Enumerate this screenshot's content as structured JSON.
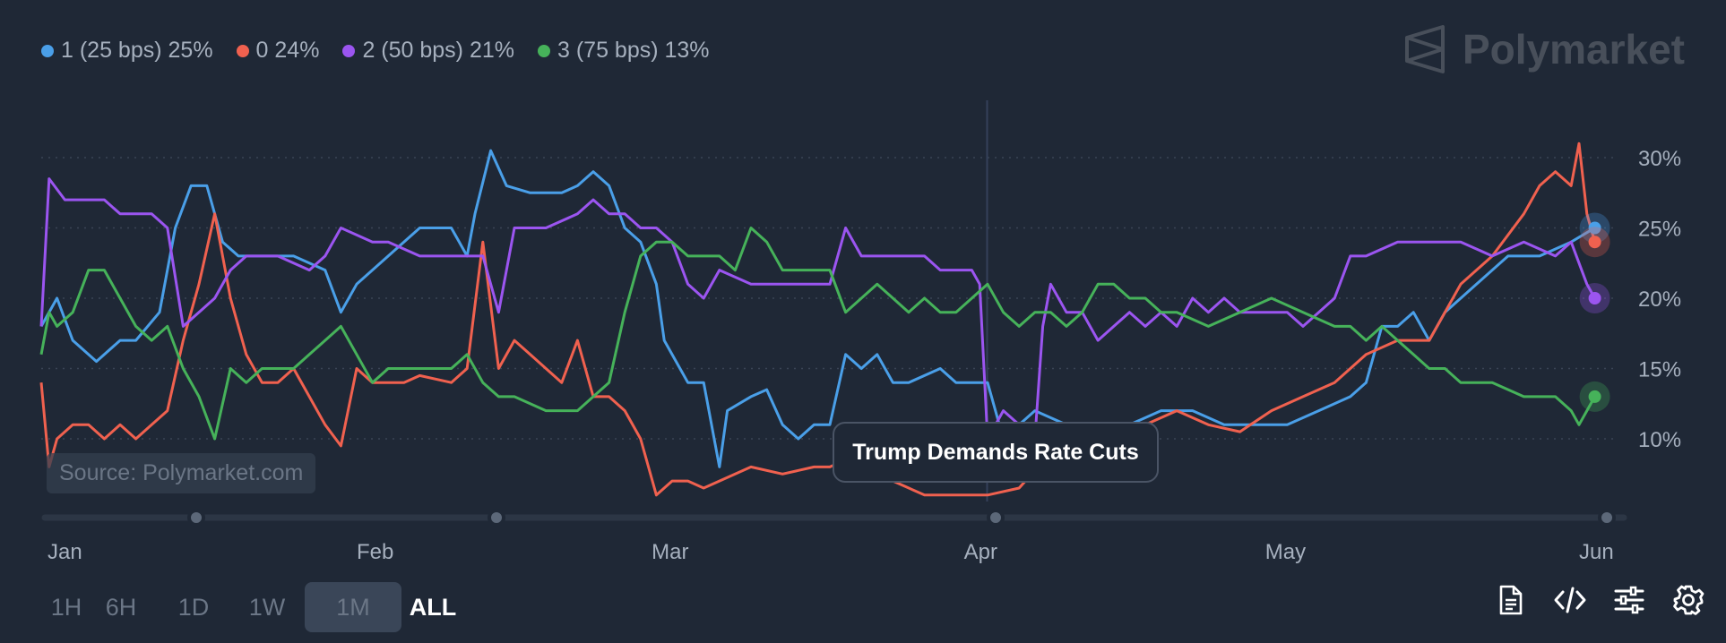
{
  "legend": [
    {
      "label": "1 (25 bps) 25%",
      "color": "#4a9fe8"
    },
    {
      "label": "0 24%",
      "color": "#f0614f"
    },
    {
      "label": "2 (50 bps) 21%",
      "color": "#9b55f0"
    },
    {
      "label": "3 (75 bps) 13%",
      "color": "#46b25a"
    }
  ],
  "brand": {
    "name": "Polymarket"
  },
  "source": "Source: Polymarket.com",
  "annotation": "Trump Demands Rate Cuts",
  "time_buttons": [
    "1H",
    "6H",
    "1D",
    "1W",
    "1M",
    "ALL"
  ],
  "time_selected": "ALL",
  "toolbar_icons": [
    "document-icon",
    "code-icon",
    "sliders-icon",
    "gear-icon"
  ],
  "chart_data": {
    "type": "line",
    "x_labels": [
      "Jan",
      "Feb",
      "Mar",
      "Apr",
      "May",
      "Jun"
    ],
    "y_ticks": [
      "30%",
      "25%",
      "20%",
      "15%",
      "10%"
    ],
    "y_tick_values": [
      30,
      25,
      20,
      15,
      10
    ],
    "ylim": [
      4,
      31
    ],
    "x_range": [
      0,
      100
    ],
    "x_label_positions": [
      0.4,
      20,
      38.7,
      58.5,
      77.6,
      97.5
    ],
    "grid": true,
    "event_x": 60,
    "series": [
      {
        "name": "1 (25 bps)",
        "color": "#4a9fe8",
        "points": [
          [
            0,
            18
          ],
          [
            1,
            20
          ],
          [
            2,
            17
          ],
          [
            3.5,
            15.5
          ],
          [
            5,
            17
          ],
          [
            6,
            17
          ],
          [
            7.5,
            19
          ],
          [
            8.5,
            25
          ],
          [
            9.5,
            28
          ],
          [
            10.5,
            28
          ],
          [
            11.5,
            24
          ],
          [
            12.5,
            23
          ],
          [
            14,
            23
          ],
          [
            16,
            23
          ],
          [
            18,
            22
          ],
          [
            19,
            19
          ],
          [
            20,
            21
          ],
          [
            22,
            23
          ],
          [
            24,
            25
          ],
          [
            26,
            25
          ],
          [
            27,
            23
          ],
          [
            27.5,
            26
          ],
          [
            28.5,
            30.5
          ],
          [
            29.5,
            28
          ],
          [
            31,
            27.5
          ],
          [
            33,
            27.5
          ],
          [
            34,
            28
          ],
          [
            35,
            29
          ],
          [
            36,
            28
          ],
          [
            37,
            25
          ],
          [
            38,
            24
          ],
          [
            39,
            21
          ],
          [
            39.5,
            17
          ],
          [
            40.5,
            15
          ],
          [
            41,
            14
          ],
          [
            42,
            14
          ],
          [
            43,
            8
          ],
          [
            43.5,
            12
          ],
          [
            45,
            13
          ],
          [
            46,
            13.5
          ],
          [
            47,
            11
          ],
          [
            48,
            10
          ],
          [
            49,
            11
          ],
          [
            50,
            11
          ],
          [
            51,
            16
          ],
          [
            52,
            15
          ],
          [
            53,
            16
          ],
          [
            54,
            14
          ],
          [
            55,
            14
          ],
          [
            57,
            15
          ],
          [
            58,
            14
          ],
          [
            60,
            14
          ],
          [
            61,
            10
          ],
          [
            62,
            11
          ],
          [
            63,
            12
          ],
          [
            65,
            11
          ],
          [
            67,
            11
          ],
          [
            69,
            11
          ],
          [
            71,
            12
          ],
          [
            73,
            12
          ],
          [
            75,
            11
          ],
          [
            77,
            11
          ],
          [
            79,
            11
          ],
          [
            81,
            12
          ],
          [
            83,
            13
          ],
          [
            84,
            14
          ],
          [
            85,
            18
          ],
          [
            86,
            18
          ],
          [
            87,
            19
          ],
          [
            88,
            17
          ],
          [
            89,
            19
          ],
          [
            91,
            21
          ],
          [
            93,
            23
          ],
          [
            95,
            23
          ],
          [
            97,
            24
          ],
          [
            98.5,
            25
          ]
        ]
      },
      {
        "name": "0",
        "color": "#f0614f",
        "points": [
          [
            0,
            14
          ],
          [
            0.5,
            8
          ],
          [
            1,
            10
          ],
          [
            2,
            11
          ],
          [
            3,
            11
          ],
          [
            4,
            10
          ],
          [
            5,
            11
          ],
          [
            6,
            10
          ],
          [
            7,
            11
          ],
          [
            8,
            12
          ],
          [
            9,
            17
          ],
          [
            10,
            21
          ],
          [
            11,
            26
          ],
          [
            12,
            20
          ],
          [
            13,
            16
          ],
          [
            14,
            14
          ],
          [
            15,
            14
          ],
          [
            16,
            15
          ],
          [
            17,
            13
          ],
          [
            18,
            11
          ],
          [
            19,
            9.5
          ],
          [
            20,
            15
          ],
          [
            21,
            14
          ],
          [
            22,
            14
          ],
          [
            23,
            14
          ],
          [
            24,
            14.5
          ],
          [
            26,
            14
          ],
          [
            27,
            15
          ],
          [
            28,
            24
          ],
          [
            29,
            15
          ],
          [
            30,
            17
          ],
          [
            31,
            16
          ],
          [
            32,
            15
          ],
          [
            33,
            14
          ],
          [
            34,
            17
          ],
          [
            35,
            13
          ],
          [
            36,
            13
          ],
          [
            37,
            12
          ],
          [
            38,
            10
          ],
          [
            38.5,
            8
          ],
          [
            39,
            6
          ],
          [
            40,
            7
          ],
          [
            41,
            7
          ],
          [
            42,
            6.5
          ],
          [
            43,
            7
          ],
          [
            44,
            7.5
          ],
          [
            45,
            8
          ],
          [
            47,
            7.5
          ],
          [
            49,
            8
          ],
          [
            50,
            8
          ],
          [
            52,
            9
          ],
          [
            54,
            7
          ],
          [
            56,
            6
          ],
          [
            58,
            6
          ],
          [
            60,
            6
          ],
          [
            62,
            6.5
          ],
          [
            64,
            9
          ],
          [
            66,
            10
          ],
          [
            68,
            11
          ],
          [
            70,
            11
          ],
          [
            72,
            12
          ],
          [
            74,
            11
          ],
          [
            76,
            10.5
          ],
          [
            78,
            12
          ],
          [
            80,
            13
          ],
          [
            82,
            14
          ],
          [
            84,
            16
          ],
          [
            86,
            17
          ],
          [
            88,
            17
          ],
          [
            90,
            21
          ],
          [
            92,
            23
          ],
          [
            94,
            26
          ],
          [
            95,
            28
          ],
          [
            96,
            29
          ],
          [
            97,
            28
          ],
          [
            97.5,
            31
          ],
          [
            98,
            26
          ],
          [
            98.5,
            24
          ]
        ]
      },
      {
        "name": "2 (50 bps)",
        "color": "#9b55f0",
        "points": [
          [
            0,
            18
          ],
          [
            0.5,
            28.5
          ],
          [
            1.5,
            27
          ],
          [
            3,
            27
          ],
          [
            4,
            27
          ],
          [
            5,
            26
          ],
          [
            7,
            26
          ],
          [
            8,
            25
          ],
          [
            9,
            18
          ],
          [
            10,
            19
          ],
          [
            11,
            20
          ],
          [
            12,
            22
          ],
          [
            13,
            23
          ],
          [
            15,
            23
          ],
          [
            17,
            22
          ],
          [
            18,
            23
          ],
          [
            19,
            25
          ],
          [
            21,
            24
          ],
          [
            22,
            24
          ],
          [
            24,
            23
          ],
          [
            26,
            23
          ],
          [
            27,
            23
          ],
          [
            28,
            23
          ],
          [
            29,
            19
          ],
          [
            30,
            25
          ],
          [
            32,
            25
          ],
          [
            34,
            26
          ],
          [
            35,
            27
          ],
          [
            36,
            26
          ],
          [
            37,
            26
          ],
          [
            38,
            25
          ],
          [
            39,
            25
          ],
          [
            40,
            24
          ],
          [
            41,
            21
          ],
          [
            42,
            20
          ],
          [
            43,
            22
          ],
          [
            45,
            21
          ],
          [
            47,
            21
          ],
          [
            49,
            21
          ],
          [
            50,
            21
          ],
          [
            51,
            25
          ],
          [
            52,
            23
          ],
          [
            54,
            23
          ],
          [
            56,
            23
          ],
          [
            57,
            22
          ],
          [
            59,
            22
          ],
          [
            59.5,
            21
          ],
          [
            60,
            10
          ],
          [
            61,
            12
          ],
          [
            62,
            11
          ],
          [
            63,
            10
          ],
          [
            63.5,
            18
          ],
          [
            64,
            21
          ],
          [
            65,
            19
          ],
          [
            66,
            19
          ],
          [
            67,
            17
          ],
          [
            68,
            18
          ],
          [
            69,
            19
          ],
          [
            70,
            18
          ],
          [
            71,
            19
          ],
          [
            72,
            18
          ],
          [
            73,
            20
          ],
          [
            74,
            19
          ],
          [
            75,
            20
          ],
          [
            76,
            19
          ],
          [
            77,
            19
          ],
          [
            79,
            19
          ],
          [
            80,
            18
          ],
          [
            81,
            19
          ],
          [
            82,
            20
          ],
          [
            83,
            23
          ],
          [
            84,
            23
          ],
          [
            86,
            24
          ],
          [
            88,
            24
          ],
          [
            90,
            24
          ],
          [
            92,
            23
          ],
          [
            94,
            24
          ],
          [
            96,
            23
          ],
          [
            97,
            24
          ],
          [
            98,
            21
          ],
          [
            98.5,
            20
          ]
        ]
      },
      {
        "name": "3 (75 bps)",
        "color": "#46b25a",
        "points": [
          [
            0,
            16
          ],
          [
            0.5,
            19
          ],
          [
            1,
            18
          ],
          [
            2,
            19
          ],
          [
            3,
            22
          ],
          [
            4,
            22
          ],
          [
            5,
            20
          ],
          [
            6,
            18
          ],
          [
            7,
            17
          ],
          [
            8,
            18
          ],
          [
            9,
            15
          ],
          [
            10,
            13
          ],
          [
            11,
            10
          ],
          [
            12,
            15
          ],
          [
            13,
            14
          ],
          [
            14,
            15
          ],
          [
            16,
            15
          ],
          [
            17,
            16
          ],
          [
            18,
            17
          ],
          [
            19,
            18
          ],
          [
            20,
            16
          ],
          [
            21,
            14
          ],
          [
            22,
            15
          ],
          [
            24,
            15
          ],
          [
            26,
            15
          ],
          [
            27,
            16
          ],
          [
            28,
            14
          ],
          [
            29,
            13
          ],
          [
            30,
            13
          ],
          [
            32,
            12
          ],
          [
            34,
            12
          ],
          [
            35,
            13
          ],
          [
            36,
            14
          ],
          [
            37,
            19
          ],
          [
            38,
            23
          ],
          [
            39,
            24
          ],
          [
            40,
            24
          ],
          [
            41,
            23
          ],
          [
            42,
            23
          ],
          [
            43,
            23
          ],
          [
            44,
            22
          ],
          [
            45,
            25
          ],
          [
            46,
            24
          ],
          [
            47,
            22
          ],
          [
            48,
            22
          ],
          [
            49,
            22
          ],
          [
            50,
            22
          ],
          [
            51,
            19
          ],
          [
            52,
            20
          ],
          [
            53,
            21
          ],
          [
            54,
            20
          ],
          [
            55,
            19
          ],
          [
            56,
            20
          ],
          [
            57,
            19
          ],
          [
            58,
            19
          ],
          [
            59,
            20
          ],
          [
            60,
            21
          ],
          [
            61,
            19
          ],
          [
            62,
            18
          ],
          [
            63,
            19
          ],
          [
            64,
            19
          ],
          [
            65,
            18
          ],
          [
            66,
            19
          ],
          [
            67,
            21
          ],
          [
            68,
            21
          ],
          [
            69,
            20
          ],
          [
            70,
            20
          ],
          [
            71,
            19
          ],
          [
            72,
            19
          ],
          [
            74,
            18
          ],
          [
            76,
            19
          ],
          [
            78,
            20
          ],
          [
            80,
            19
          ],
          [
            82,
            18
          ],
          [
            83,
            18
          ],
          [
            84,
            17
          ],
          [
            85,
            18
          ],
          [
            86,
            17
          ],
          [
            87,
            16
          ],
          [
            88,
            15
          ],
          [
            89,
            15
          ],
          [
            90,
            14
          ],
          [
            92,
            14
          ],
          [
            94,
            13
          ],
          [
            96,
            13
          ],
          [
            97,
            12
          ],
          [
            97.5,
            11
          ],
          [
            98,
            12
          ],
          [
            98.5,
            13
          ]
        ]
      }
    ]
  }
}
